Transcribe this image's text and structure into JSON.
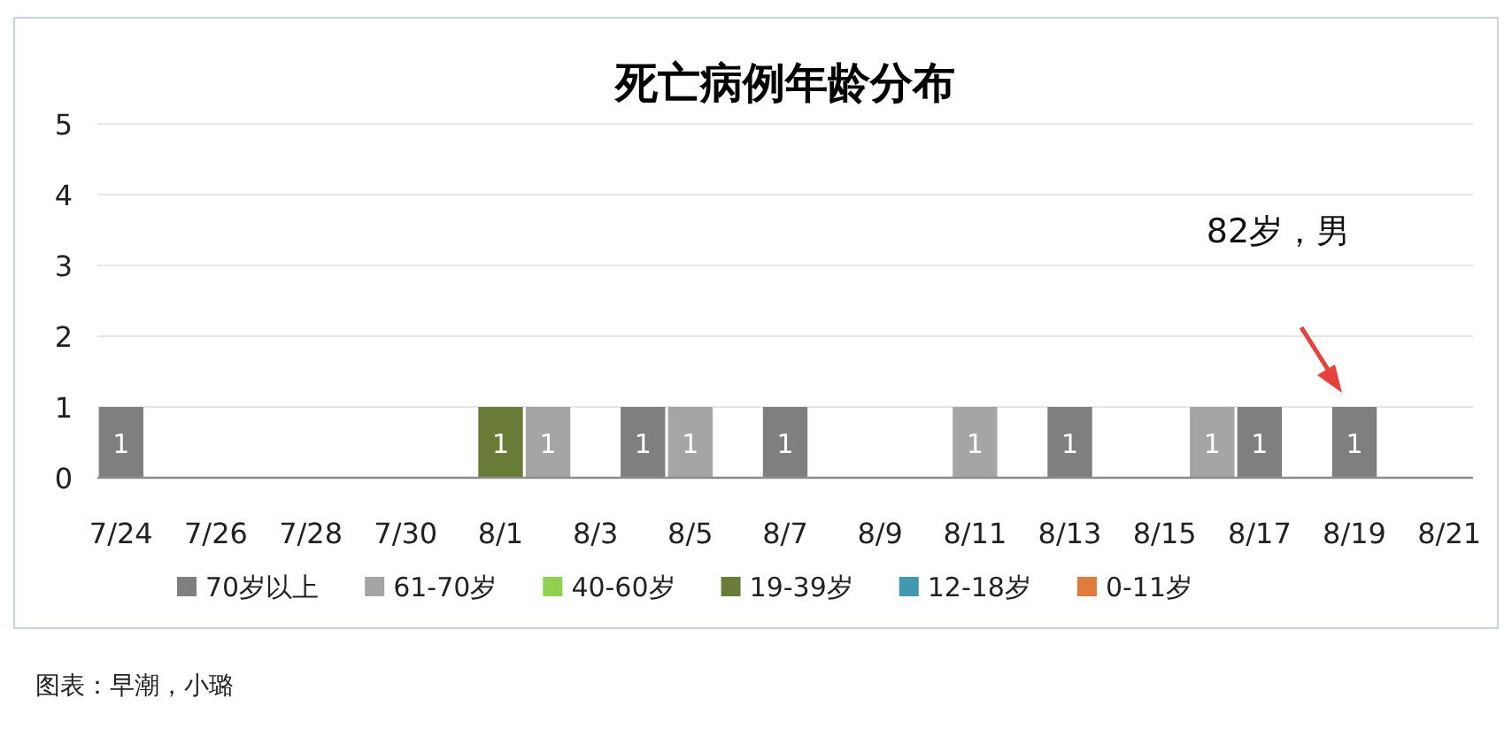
{
  "chart_data": {
    "type": "bar",
    "title": "死亡病例年龄分布",
    "data_labels": true,
    "grid": "y",
    "legend": "bottom",
    "categories": [
      "7/24",
      null,
      "7/26",
      null,
      "7/28",
      null,
      "7/30",
      null,
      "8/1",
      null,
      "8/3",
      null,
      "8/5",
      null,
      "8/7",
      null,
      "8/9",
      null,
      "8/11",
      null,
      "8/13",
      null,
      "8/15",
      null,
      "8/17",
      null,
      "8/19",
      null,
      "8/21"
    ],
    "ylim": [
      0,
      5
    ],
    "yticks": [
      0,
      1,
      2,
      3,
      4,
      5
    ],
    "series": [
      {
        "name": "70岁以上",
        "color": "#7f7f7f",
        "values": [
          1,
          null,
          null,
          null,
          null,
          null,
          null,
          null,
          null,
          null,
          null,
          1,
          null,
          null,
          1,
          null,
          null,
          null,
          null,
          null,
          1,
          null,
          null,
          null,
          1,
          null,
          1,
          null,
          null
        ]
      },
      {
        "name": "61-70岁",
        "color": "#a5a5a5",
        "values": [
          null,
          null,
          null,
          null,
          null,
          null,
          null,
          null,
          null,
          1,
          null,
          null,
          1,
          null,
          null,
          null,
          null,
          null,
          1,
          null,
          null,
          null,
          null,
          1,
          null,
          null,
          null,
          null,
          null
        ]
      },
      {
        "name": "40-60岁",
        "color": "#92d050",
        "values": [
          null,
          null,
          null,
          null,
          null,
          null,
          null,
          null,
          null,
          null,
          null,
          null,
          null,
          null,
          null,
          null,
          null,
          null,
          null,
          null,
          null,
          null,
          null,
          null,
          null,
          null,
          null,
          null,
          null
        ]
      },
      {
        "name": "19-39岁",
        "color": "#6a7d38",
        "values": [
          null,
          null,
          null,
          null,
          null,
          null,
          null,
          null,
          1,
          null,
          null,
          null,
          null,
          null,
          null,
          null,
          null,
          null,
          null,
          null,
          null,
          null,
          null,
          null,
          null,
          null,
          null,
          null,
          null
        ]
      },
      {
        "name": "12-18岁",
        "color": "#4198af",
        "values": [
          null,
          null,
          null,
          null,
          null,
          null,
          null,
          null,
          null,
          null,
          null,
          null,
          null,
          null,
          null,
          null,
          null,
          null,
          null,
          null,
          null,
          null,
          null,
          null,
          null,
          null,
          null,
          null,
          null
        ]
      },
      {
        "name": "0-11岁",
        "color": "#e07b39",
        "values": [
          null,
          null,
          null,
          null,
          null,
          null,
          null,
          null,
          null,
          null,
          null,
          null,
          null,
          null,
          null,
          null,
          null,
          null,
          null,
          null,
          null,
          null,
          null,
          null,
          null,
          null,
          null,
          null,
          null
        ]
      }
    ],
    "annotations": [
      "82岁，男",
      "图表：早潮，小璐"
    ]
  }
}
